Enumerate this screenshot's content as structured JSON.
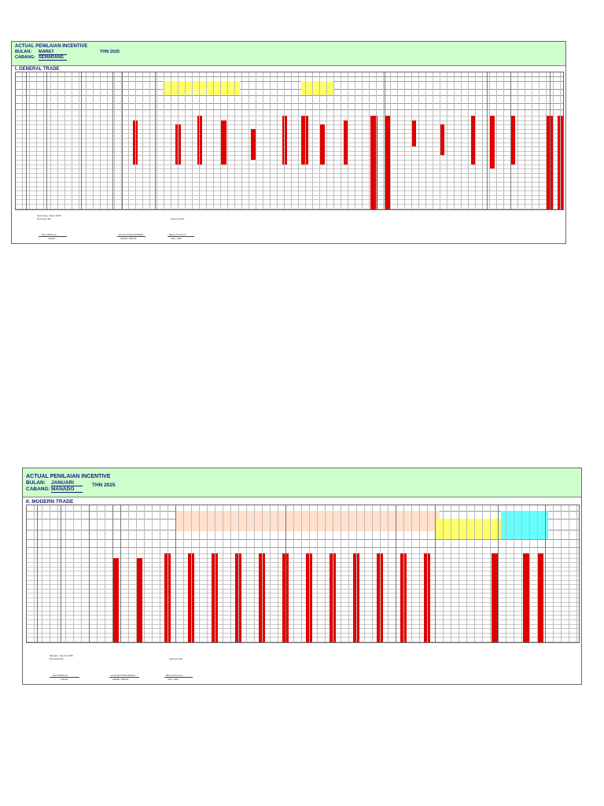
{
  "sheets": [
    {
      "title": "ACTUAL PENILAIAN INCENTIVE",
      "bulan_label": "BULAN:",
      "bulan_value": "MARET",
      "cabang_label": "CABANG:",
      "cabang_value": "SEMARANG",
      "year": "THN 2025",
      "section": "I. GENERAL TRADE",
      "footer": {
        "place_date": "Semarang, Maret 2025",
        "reviewed": "Reviewed By,",
        "approved": "Approved By,",
        "sig1_name": "Boni Wibisono",
        "sig1_role": "ASOM",
        "sig2_name": "Husnul Khatimah/Riska",
        "sig2_role": "ADMIN / BRSS",
        "sig3_name": "Benny Purnomo",
        "sig3_role": "ASC / MM"
      }
    },
    {
      "title": "ACTUAL PENILAIAN INCENTIVE",
      "bulan_label": "BULAN:",
      "bulan_value": "JANUARI",
      "cabang_label": "CABANG:",
      "cabang_value": "MANADO",
      "year": "THN 2025",
      "section": "II. MODERN TRADE",
      "footer": {
        "place_date": "Manado, Januari 2025",
        "reviewed": "Reviewed By,",
        "approved": "Approved By,",
        "sig1_name": "Boni Wibisono",
        "sig1_role": "ASOM",
        "sig2_name": "Amanda Pratama/Rista",
        "sig2_role": "ADMIN / BRSS",
        "sig3_name": "Benny Purnomo",
        "sig3_role": "ASC / MM"
      }
    }
  ]
}
